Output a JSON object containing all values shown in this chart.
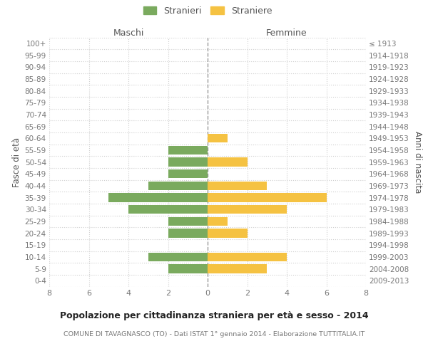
{
  "age_groups": [
    "0-4",
    "5-9",
    "10-14",
    "15-19",
    "20-24",
    "25-29",
    "30-34",
    "35-39",
    "40-44",
    "45-49",
    "50-54",
    "55-59",
    "60-64",
    "65-69",
    "70-74",
    "75-79",
    "80-84",
    "85-89",
    "90-94",
    "95-99",
    "100+"
  ],
  "birth_years": [
    "2009-2013",
    "2004-2008",
    "1999-2003",
    "1994-1998",
    "1989-1993",
    "1984-1988",
    "1979-1983",
    "1974-1978",
    "1969-1973",
    "1964-1968",
    "1959-1963",
    "1954-1958",
    "1949-1953",
    "1944-1948",
    "1939-1943",
    "1934-1938",
    "1929-1933",
    "1924-1928",
    "1919-1923",
    "1914-1918",
    "≤ 1913"
  ],
  "maschi": [
    0,
    2,
    3,
    0,
    2,
    2,
    4,
    5,
    3,
    2,
    2,
    2,
    0,
    0,
    0,
    0,
    0,
    0,
    0,
    0,
    0
  ],
  "femmine": [
    0,
    3,
    4,
    0,
    2,
    1,
    4,
    6,
    3,
    0,
    2,
    0,
    1,
    0,
    0,
    0,
    0,
    0,
    0,
    0,
    0
  ],
  "maschi_color": "#7aaa5e",
  "femmine_color": "#f5c242",
  "title": "Popolazione per cittadinanza straniera per età e sesso - 2014",
  "subtitle": "COMUNE DI TAVAGNASCO (TO) - Dati ISTAT 1° gennaio 2014 - Elaborazione TUTTITALIA.IT",
  "xlabel_left": "Maschi",
  "xlabel_right": "Femmine",
  "ylabel": "Fasce di età",
  "ylabel_right": "Anni di nascita",
  "legend_maschi": "Stranieri",
  "legend_femmine": "Straniere",
  "xlim": 8,
  "background_color": "#ffffff",
  "grid_color": "#d0d0d0",
  "bar_height": 0.75
}
